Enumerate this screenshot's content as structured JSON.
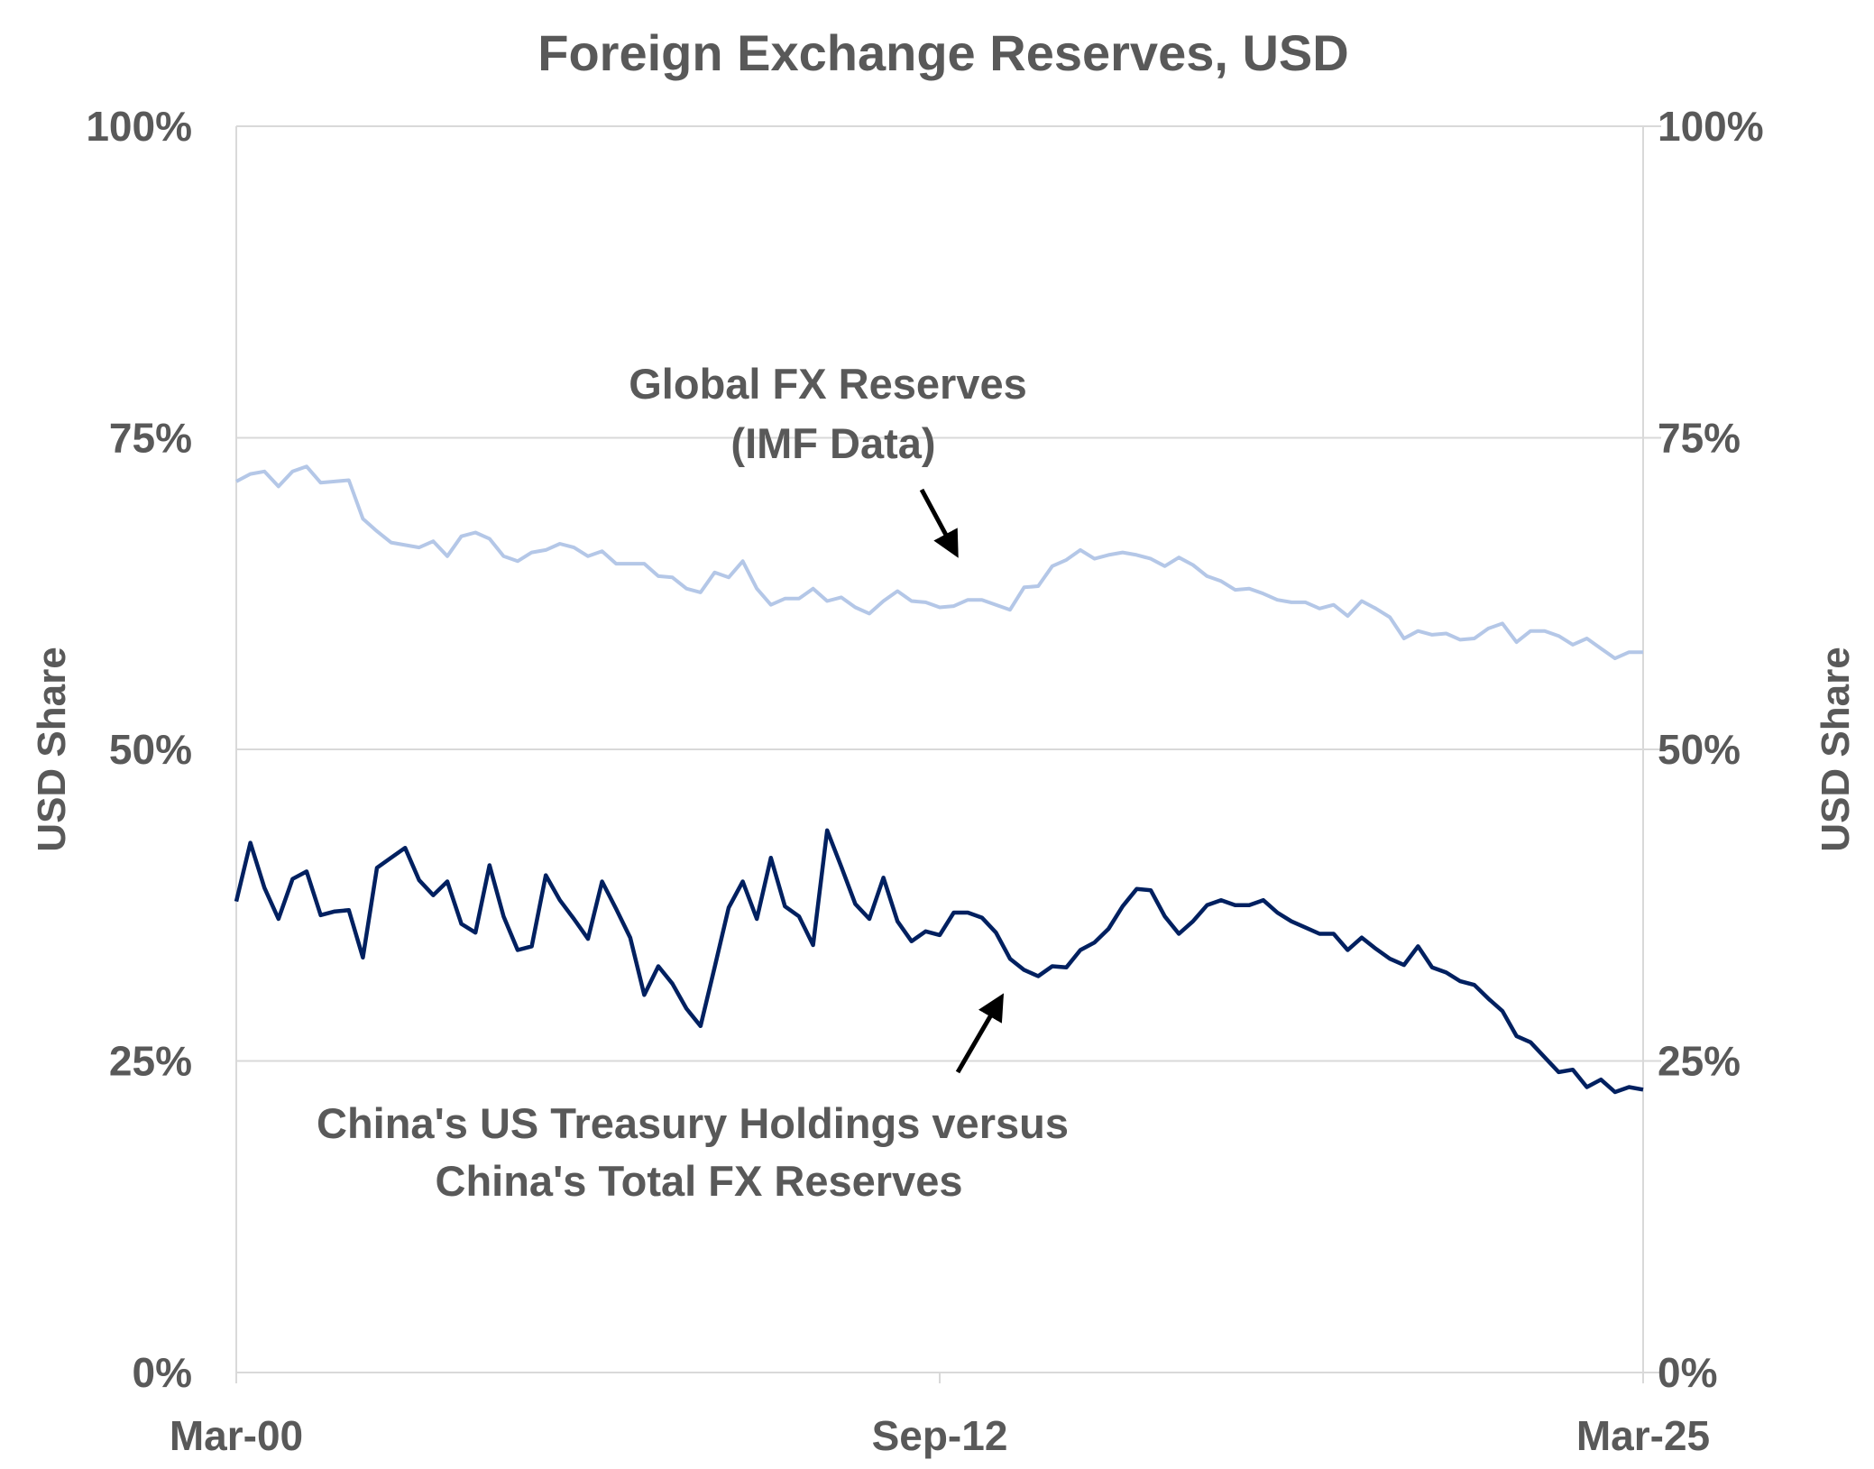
{
  "chart_data": {
    "type": "line",
    "title": "Foreign Exchange Reserves, USD",
    "xlabel": "",
    "ylabel_left": "USD  Share",
    "ylabel_right": "USD  Share",
    "ylim": [
      0,
      100
    ],
    "y_ticks": [
      "0%",
      "25%",
      "50%",
      "75%",
      "100%"
    ],
    "y_tick_values": [
      0,
      25,
      50,
      75,
      100
    ],
    "x_frequency": "quarterly",
    "x_start": "Mar-00",
    "x_end": "Mar-25",
    "x_ticks": [
      {
        "label": "Mar-00",
        "index": 0
      },
      {
        "label": "Sep-12",
        "index": 50
      },
      {
        "label": "Mar-25",
        "index": 100
      }
    ],
    "grid": true,
    "series": [
      {
        "name": "Global FX Reserves (IMF Data)",
        "color": "#b4c7e7",
        "values": [
          71.5,
          72.1,
          72.3,
          71.1,
          72.3,
          72.7,
          71.4,
          71.5,
          71.6,
          68.5,
          67.5,
          66.6,
          66.4,
          66.2,
          66.7,
          65.5,
          67.1,
          67.4,
          66.9,
          65.5,
          65.1,
          65.8,
          66.0,
          66.5,
          66.2,
          65.5,
          65.9,
          64.9,
          64.9,
          64.9,
          63.9,
          63.8,
          62.9,
          62.6,
          64.2,
          63.8,
          65.1,
          62.9,
          61.6,
          62.1,
          62.1,
          62.9,
          61.9,
          62.2,
          61.4,
          60.9,
          61.9,
          62.7,
          61.9,
          61.8,
          61.4,
          61.5,
          62.0,
          62.0,
          61.6,
          61.2,
          63.0,
          63.1,
          64.7,
          65.2,
          66.0,
          65.3,
          65.6,
          65.8,
          65.6,
          65.3,
          64.7,
          65.4,
          64.8,
          63.9,
          63.5,
          62.8,
          62.9,
          62.5,
          62.0,
          61.8,
          61.8,
          61.3,
          61.6,
          60.7,
          61.9,
          61.3,
          60.6,
          58.9,
          59.5,
          59.2,
          59.3,
          58.8,
          58.9,
          59.7,
          60.1,
          58.6,
          59.5,
          59.5,
          59.1,
          58.4,
          58.9,
          58.1,
          57.3,
          57.8,
          57.8
        ]
      },
      {
        "name": "China's US Treasury Holdings versus China's Total FX Reserves",
        "color": "#002060",
        "values": [
          37.8,
          42.5,
          38.9,
          36.4,
          39.6,
          40.2,
          36.7,
          37.0,
          37.1,
          33.3,
          40.5,
          41.3,
          42.1,
          39.5,
          38.3,
          39.4,
          36.0,
          35.3,
          40.7,
          36.6,
          33.9,
          34.2,
          39.9,
          37.9,
          36.4,
          34.8,
          39.4,
          37.2,
          34.9,
          30.3,
          32.6,
          31.2,
          29.2,
          27.8,
          32.5,
          37.3,
          39.4,
          36.4,
          41.3,
          37.4,
          36.6,
          34.3,
          43.5,
          40.6,
          37.6,
          36.4,
          39.7,
          36.2,
          34.6,
          35.4,
          35.1,
          36.9,
          36.9,
          36.5,
          35.3,
          33.2,
          32.3,
          31.8,
          32.6,
          32.5,
          33.9,
          34.5,
          35.6,
          37.4,
          38.8,
          38.7,
          36.6,
          35.2,
          36.2,
          37.5,
          37.9,
          37.5,
          37.5,
          37.9,
          36.9,
          36.2,
          35.7,
          35.2,
          35.2,
          33.9,
          34.9,
          34.0,
          33.2,
          32.7,
          34.2,
          32.5,
          32.1,
          31.4,
          31.1,
          30.0,
          29.0,
          27.0,
          26.5,
          25.3,
          24.1,
          24.3,
          22.9,
          23.5,
          22.5,
          22.9,
          22.7
        ]
      }
    ],
    "annotations": {
      "global_line1": "Global FX Reserves",
      "global_line2": "(IMF Data)",
      "china_line1": "China's US Treasury Holdings versus",
      "china_line2": "China's Total FX Reserves"
    },
    "legend": "none (inline annotations with arrows)"
  }
}
